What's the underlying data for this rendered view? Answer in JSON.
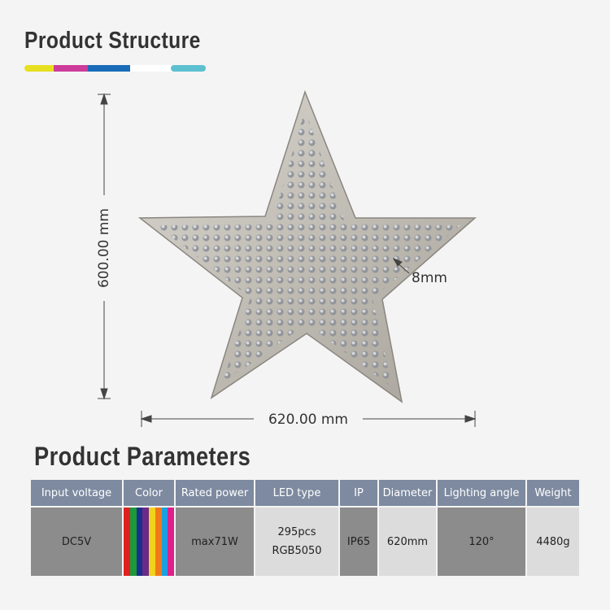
{
  "header": {
    "title": "Product Structure"
  },
  "dimensions": {
    "height": "600.00 mm",
    "width": "620.00 mm",
    "edge": "8mm"
  },
  "parameters": {
    "title": "Product Parameters",
    "columns": [
      {
        "header": "Input voltage",
        "value": "DC5V"
      },
      {
        "header": "Color",
        "swatches": [
          "#e02020",
          "#1a9a3a",
          "#1d2f8c",
          "#6a2a8a",
          "#f2d21a",
          "#f07a1a",
          "#1aa0e0",
          "#e0208a"
        ]
      },
      {
        "header": "Rated power",
        "value": "max71W"
      },
      {
        "header": "LED type",
        "lines": [
          "295pcs",
          "RGB5050"
        ]
      },
      {
        "header": "IP",
        "value": "IP65"
      },
      {
        "header": "Diameter",
        "value": "620mm"
      },
      {
        "header": "Lighting angle",
        "value": "120°"
      },
      {
        "header": "Weight",
        "value": "4480g"
      }
    ]
  }
}
